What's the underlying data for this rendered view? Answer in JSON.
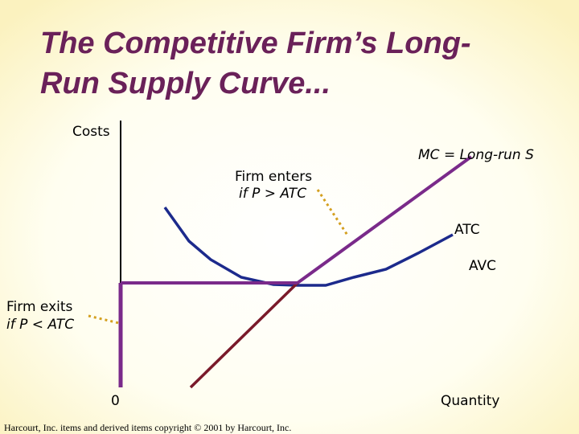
{
  "header": {
    "title_lines": [
      "The Competitive Firm’s Long-",
      "Run Supply Curve..."
    ]
  },
  "diagram": {
    "y_axis_label": "Costs",
    "x_axis_label": "Quantity",
    "origin_label": "0",
    "mc_label": "MC = Long-run S",
    "atc_label": "ATC",
    "avc_label": "AVC",
    "enter_label": [
      "Firm enters",
      "if P > ATC"
    ],
    "exit_label": [
      "Firm exits",
      "if P < ATC"
    ]
  },
  "footer": "Harcourt, Inc. items and derived items copyright © 2001 by Harcourt, Inc."
}
